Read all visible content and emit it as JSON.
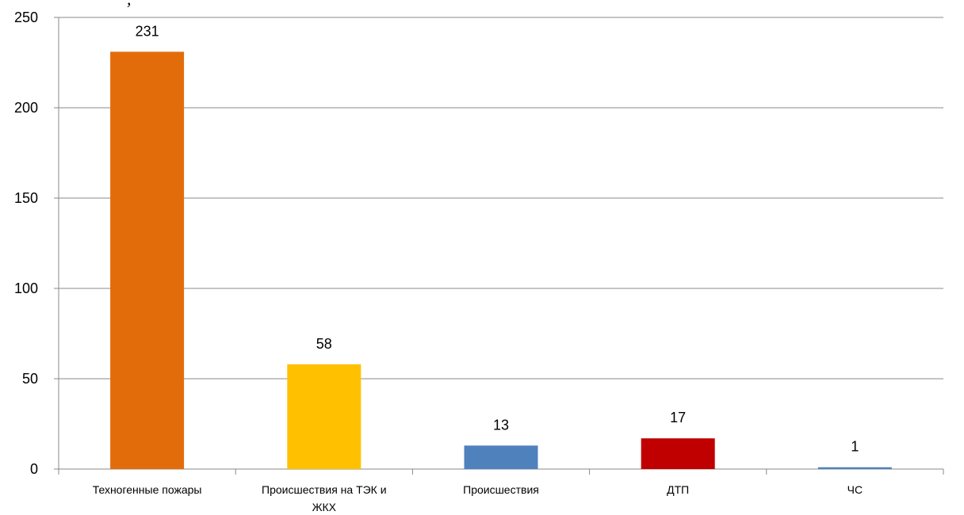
{
  "chart_data": {
    "type": "bar",
    "title": "",
    "xlabel": "",
    "ylabel": "",
    "categories": [
      [
        "Техногенные пожары"
      ],
      [
        "Происшествия на ТЭК и",
        "ЖКХ"
      ],
      [
        "Происшествия"
      ],
      [
        "ДТП"
      ],
      [
        "ЧС"
      ]
    ],
    "values": [
      231,
      58,
      13,
      17,
      1
    ],
    "colors": [
      "#E36C0A",
      "#FFC000",
      "#4F81BD",
      "#C00000",
      "#4F81BD"
    ],
    "ylim": [
      0,
      250
    ],
    "yticks": [
      0,
      50,
      100,
      150,
      200,
      250
    ],
    "grid": true,
    "legend": "none"
  }
}
